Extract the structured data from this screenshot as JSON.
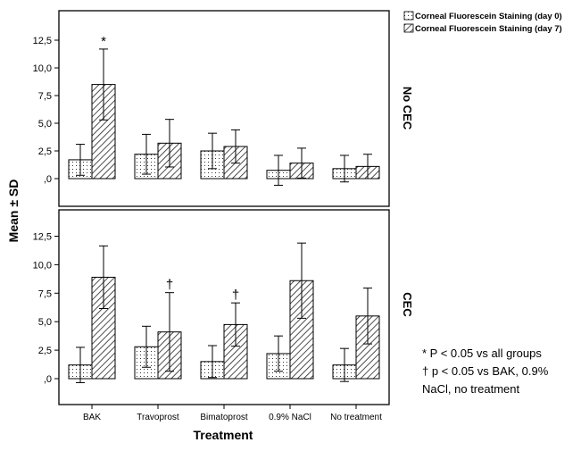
{
  "chart_data": {
    "type": "bar",
    "categories": [
      "BAK",
      "Travoprost",
      "Bimatoprost",
      "0.9% NaCl",
      "No treatment"
    ],
    "xlabel": "Treatment",
    "ylabel": "Mean ± SD",
    "ylim": [
      -1.5,
      12.5
    ],
    "yticks": [
      "12,5",
      "10,0",
      "7,5",
      "5,0",
      "2,5",
      ",0"
    ],
    "ytick_values": [
      12.5,
      10.0,
      7.5,
      5.0,
      2.5,
      0.0
    ],
    "grid": false,
    "legend_position": "top-right",
    "legend": [
      {
        "label": "Corneal Fluorescein Staining (day 0)",
        "pattern": "dots"
      },
      {
        "label": "Corneal Fluorescein Staining (day 7)",
        "pattern": "hatch"
      }
    ],
    "panels": [
      {
        "label": "No CEC",
        "series": [
          {
            "name": "Corneal Fluorescein Staining (day 0)",
            "values": [
              1.7,
              2.2,
              2.5,
              0.75,
              0.9
            ],
            "sd": [
              1.4,
              1.8,
              1.6,
              1.35,
              1.2
            ]
          },
          {
            "name": "Corneal Fluorescein Staining (day 7)",
            "values": [
              8.5,
              3.2,
              2.9,
              1.4,
              1.1
            ],
            "sd": [
              3.2,
              2.15,
              1.5,
              1.35,
              1.1
            ]
          }
        ],
        "annotations": [
          {
            "category": "BAK",
            "series": 1,
            "text": "*"
          }
        ]
      },
      {
        "label": "CEC",
        "series": [
          {
            "name": "Corneal Fluorescein Staining (day 0)",
            "values": [
              1.2,
              2.8,
              1.5,
              2.2,
              1.2
            ],
            "sd": [
              1.55,
              1.8,
              1.4,
              1.55,
              1.45
            ]
          },
          {
            "name": "Corneal Fluorescein Staining (day 7)",
            "values": [
              8.9,
              4.1,
              4.75,
              8.6,
              5.5
            ],
            "sd": [
              2.75,
              3.45,
              1.9,
              3.3,
              2.45
            ]
          }
        ],
        "annotations": [
          {
            "category": "Travoprost",
            "series": 1,
            "text": "†"
          },
          {
            "category": "Bimatoprost",
            "series": 1,
            "text": "†"
          }
        ]
      }
    ],
    "footnotes": [
      "* P < 0.05 vs all groups",
      "† p < 0.05 vs BAK, 0.9%",
      "NaCl, no treatment"
    ]
  }
}
